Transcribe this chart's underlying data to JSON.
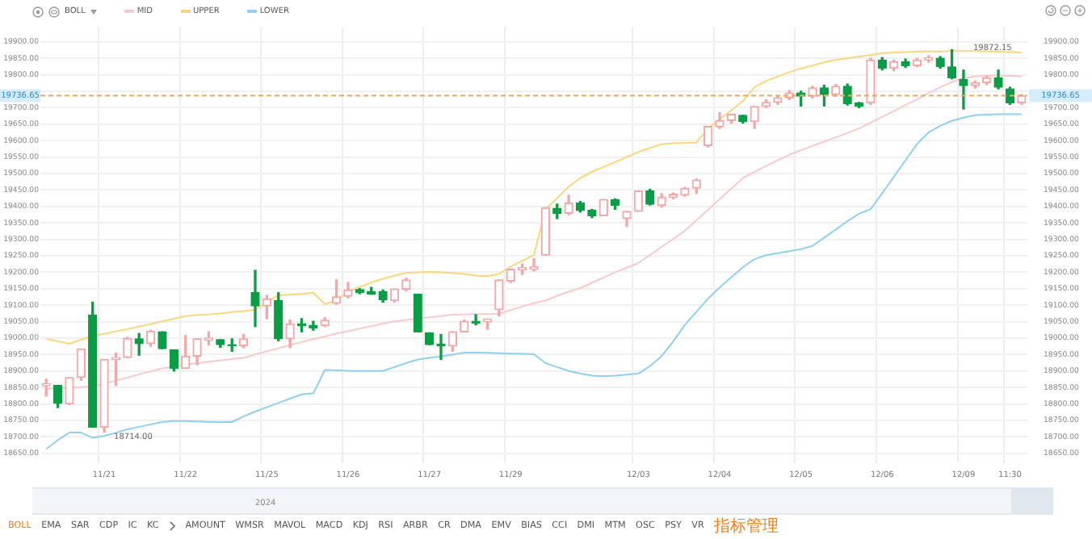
{
  "chart_data": {
    "type": "candlestick",
    "legend_title": "BOLL",
    "legend": "top left",
    "grid": true,
    "categories": [
      null,
      null,
      null,
      null,
      null,
      "11/21",
      null,
      null,
      null,
      null,
      null,
      null,
      "11/22",
      null,
      null,
      null,
      null,
      null,
      null,
      "11/25",
      null,
      null,
      null,
      null,
      null,
      null,
      "11/26",
      null,
      null,
      null,
      null,
      null,
      null,
      "11/27",
      null,
      null,
      null,
      null,
      null,
      null,
      "11/29",
      null,
      null,
      null,
      null,
      null,
      null,
      null,
      null,
      null,
      null,
      "12/03",
      null,
      null,
      null,
      null,
      null,
      null,
      "12/04",
      null,
      null,
      null,
      null,
      null,
      null,
      "12/05",
      null,
      null,
      null,
      null,
      null,
      null,
      "12/06",
      null,
      null,
      null,
      null,
      null,
      null,
      "12/09",
      null,
      null,
      null,
      "11:30",
      null
    ],
    "ylim": [
      18620,
      19945
    ],
    "yticks": [
      {
        "value": 18650,
        "label": "18650.00"
      },
      {
        "value": 18700,
        "label": "18700.00"
      },
      {
        "value": 18750,
        "label": "18750.00"
      },
      {
        "value": 18800,
        "label": "18800.00"
      },
      {
        "value": 18850,
        "label": "18850.00"
      },
      {
        "value": 18900,
        "label": "18900.00"
      },
      {
        "value": 18950,
        "label": "18950.00"
      },
      {
        "value": 19000,
        "label": "19000.00"
      },
      {
        "value": 19050,
        "label": "19050.00"
      },
      {
        "value": 19100,
        "label": "19100.00"
      },
      {
        "value": 19150,
        "label": "19150.00"
      },
      {
        "value": 19200,
        "label": "19200.00"
      },
      {
        "value": 19250,
        "label": "19250.00"
      },
      {
        "value": 19300,
        "label": "19300.00"
      },
      {
        "value": 19350,
        "label": "19350.00"
      },
      {
        "value": 19400,
        "label": "19400.00"
      },
      {
        "value": 19450,
        "label": "19450.00"
      },
      {
        "value": 19500,
        "label": "19500.00"
      },
      {
        "value": 19550,
        "label": "19550.00"
      },
      {
        "value": 19600,
        "label": "19600.00"
      },
      {
        "value": 19650,
        "label": "19650.00"
      },
      {
        "value": 19700,
        "label": "19700.00"
      },
      {
        "value": 19750,
        "label": null
      },
      {
        "value": 19800,
        "label": "19800.00"
      },
      {
        "value": 19850,
        "label": "19850.00"
      },
      {
        "value": 19900,
        "label": "19900.00"
      }
    ],
    "y2lim": [
      18620,
      19945
    ],
    "y2ticks": [
      {
        "value": 18650,
        "label": "18650.00"
      },
      {
        "value": 18700,
        "label": "18700.00"
      },
      {
        "value": 18750,
        "label": "18750.00"
      },
      {
        "value": 18800,
        "label": "18800.00"
      },
      {
        "value": 18850,
        "label": "18850.00"
      },
      {
        "value": 18900,
        "label": "18900.00"
      },
      {
        "value": 18950,
        "label": "18950.00"
      },
      {
        "value": 19000,
        "label": "19000.00"
      },
      {
        "value": 19050,
        "label": "19050.00"
      },
      {
        "value": 19100,
        "label": "19100.00"
      },
      {
        "value": 19150,
        "label": "19150.00"
      },
      {
        "value": 19200,
        "label": "19200.00"
      },
      {
        "value": 19250,
        "label": "19250.00"
      },
      {
        "value": 19300,
        "label": "19300.00"
      },
      {
        "value": 19350,
        "label": "19350.00"
      },
      {
        "value": 19400,
        "label": "19400.00"
      },
      {
        "value": 19450,
        "label": "19450.00"
      },
      {
        "value": 19500,
        "label": "19500.00"
      },
      {
        "value": 19550,
        "label": "19550.00"
      },
      {
        "value": 19600,
        "label": "19600.00"
      },
      {
        "value": 19650,
        "label": "19650.00"
      },
      {
        "value": 19700,
        "label": "19700.00"
      },
      {
        "value": 19750,
        "label": null
      },
      {
        "value": 19800,
        "label": "19800.00"
      },
      {
        "value": 19850,
        "label": "19850.00"
      },
      {
        "value": 19900,
        "label": "19900.00"
      }
    ],
    "ref_lines": [
      {
        "axis": "y",
        "value": 19736.65,
        "label": "19736.65",
        "color": "#f2a65a",
        "line_style": "dashed"
      }
    ],
    "series": [
      {
        "ohlc": [
          [
            18855,
            18875,
            18824,
            18862
          ],
          [
            18856,
            18856,
            18789,
            18802
          ],
          [
            18800,
            18880,
            18798,
            18880
          ],
          [
            18880,
            18967,
            18872,
            18967
          ],
          [
            19070,
            19109,
            18729,
            18729
          ],
          [
            18729,
            18935,
            18714,
            18935
          ],
          [
            18935,
            18954,
            18856,
            18941
          ],
          [
            18941,
            19002,
            18941,
            18999
          ],
          [
            18998,
            19014,
            18948,
            18983
          ],
          [
            18983,
            19024,
            18975,
            19021
          ],
          [
            19019,
            19019,
            18968,
            18968
          ],
          [
            18964,
            18964,
            18900,
            18908
          ],
          [
            18908,
            19008,
            18908,
            18945
          ],
          [
            18945,
            18998,
            18919,
            18998
          ],
          [
            18993,
            19019,
            18979,
            19000
          ],
          [
            18995,
            18995,
            18972,
            18980
          ],
          [
            18980,
            18998,
            18960,
            18977
          ],
          [
            18977,
            19011,
            18971,
            18998
          ],
          [
            19138,
            19206,
            19035,
            19098
          ],
          [
            19098,
            19130,
            19059,
            19119
          ],
          [
            19114,
            19138,
            18992,
            18998
          ],
          [
            18998,
            19055,
            18971,
            19043
          ],
          [
            19044,
            19059,
            19019,
            19037
          ],
          [
            19039,
            19051,
            19024,
            19031
          ],
          [
            19038,
            19062,
            19035,
            19054
          ],
          [
            19106,
            19177,
            19103,
            19125
          ],
          [
            19127,
            19169,
            19122,
            19146
          ],
          [
            19147,
            19150,
            19135,
            19138
          ],
          [
            19142,
            19154,
            19133,
            19134
          ],
          [
            19142,
            19146,
            19109,
            19117
          ],
          [
            19114,
            19149,
            19109,
            19149
          ],
          [
            19149,
            19182,
            19143,
            19177
          ],
          [
            19133,
            19133,
            19019,
            19019
          ],
          [
            19016,
            19016,
            18980,
            18980
          ],
          [
            18982,
            19011,
            18935,
            18976
          ],
          [
            18976,
            19019,
            18960,
            19019
          ],
          [
            19019,
            19055,
            19019,
            19051
          ],
          [
            19051,
            19071,
            19040,
            19046
          ],
          [
            19050,
            19058,
            19027,
            19058
          ],
          [
            19086,
            19177,
            19067,
            19177
          ],
          [
            19173,
            19209,
            19169,
            19209
          ],
          [
            19207,
            19225,
            19193,
            19214
          ],
          [
            19209,
            19241,
            19204,
            19217
          ],
          [
            19252,
            19396,
            19252,
            19396
          ],
          [
            19394,
            19407,
            19363,
            19379
          ],
          [
            19379,
            19434,
            19375,
            19410
          ],
          [
            19410,
            19415,
            19383,
            19388
          ],
          [
            19388,
            19391,
            19366,
            19372
          ],
          [
            19372,
            19421,
            19372,
            19421
          ],
          [
            19420,
            19423,
            19391,
            19403
          ],
          [
            19363,
            19385,
            19339,
            19385
          ],
          [
            19385,
            19447,
            19385,
            19447
          ],
          [
            19447,
            19452,
            19404,
            19407
          ],
          [
            19403,
            19439,
            19398,
            19428
          ],
          [
            19427,
            19441,
            19423,
            19437
          ],
          [
            19434,
            19458,
            19431,
            19455
          ],
          [
            19456,
            19483,
            19439,
            19480
          ],
          [
            19585,
            19643,
            19581,
            19643
          ],
          [
            19642,
            19685,
            19637,
            19661
          ],
          [
            19661,
            19680,
            19653,
            19680
          ],
          [
            19677,
            19677,
            19653,
            19658
          ],
          [
            19658,
            19704,
            19637,
            19704
          ],
          [
            19704,
            19724,
            19700,
            19716
          ],
          [
            19716,
            19735,
            19710,
            19730
          ],
          [
            19730,
            19752,
            19725,
            19745
          ],
          [
            19745,
            19750,
            19705,
            19735
          ],
          [
            19735,
            19765,
            19730,
            19760
          ],
          [
            19760,
            19768,
            19705,
            19740
          ],
          [
            19740,
            19770,
            19735,
            19765
          ],
          [
            19765,
            19772,
            19708,
            19712
          ],
          [
            19714,
            19716,
            19700,
            19704
          ],
          [
            19715,
            19850,
            19710,
            19845
          ],
          [
            19845,
            19852,
            19815,
            19820
          ],
          [
            19820,
            19845,
            19812,
            19840
          ],
          [
            19840,
            19848,
            19822,
            19828
          ],
          [
            19828,
            19850,
            19825,
            19845
          ],
          [
            19845,
            19858,
            19838,
            19852
          ],
          [
            19850,
            19855,
            19820,
            19825
          ],
          [
            19824,
            19876,
            19788,
            19791
          ],
          [
            19786,
            19814,
            19696,
            19767
          ],
          [
            19767,
            19781,
            19760,
            19776
          ],
          [
            19776,
            19795,
            19770,
            19791
          ],
          [
            19791,
            19814,
            19757,
            19762
          ],
          [
            19757,
            19762,
            19710,
            19715
          ],
          [
            19715,
            19740,
            19710,
            19736.65
          ]
        ],
        "colors": [
          "#f4a7a7",
          "#0b9c46",
          "#f4a7a7",
          "#f4a7a7",
          "#0b9c46",
          "#f4a7a7",
          "#f4a7a7",
          "#f4a7a7",
          "#0b9c46",
          "#f4a7a7",
          "#0b9c46",
          "#0b9c46",
          "#f4a7a7",
          "#f4a7a7",
          "#f4a7a7",
          "#0b9c46",
          "#0b9c46",
          "#f4a7a7",
          "#0b9c46",
          "#f4a7a7",
          "#0b9c46",
          "#f4a7a7",
          "#0b9c46",
          "#0b9c46",
          "#f4a7a7",
          "#f4a7a7",
          "#f4a7a7",
          "#0b9c46",
          "#0b9c46",
          "#0b9c46",
          "#f4a7a7",
          "#f4a7a7",
          "#0b9c46",
          "#0b9c46",
          "#0b9c46",
          "#f4a7a7",
          "#f4a7a7",
          "#0b9c46",
          "#f4a7a7",
          "#f4a7a7",
          "#f4a7a7",
          "#f4a7a7",
          "#f4a7a7",
          "#f4a7a7",
          "#0b9c46",
          "#f4a7a7",
          "#0b9c46",
          "#0b9c46",
          "#f4a7a7",
          "#0b9c46",
          "#f4a7a7",
          "#f4a7a7",
          "#0b9c46",
          "#f4a7a7",
          "#f4a7a7",
          "#f4a7a7",
          "#f4a7a7",
          "#f4a7a7",
          "#f4a7a7",
          "#f4a7a7",
          "#0b9c46",
          "#f4a7a7",
          "#f4a7a7",
          "#f4a7a7",
          "#f4a7a7",
          "#0b9c46",
          "#f4a7a7",
          "#0b9c46",
          "#f4a7a7",
          "#0b9c46",
          "#0b9c46",
          "#f4a7a7",
          "#0b9c46",
          "#f4a7a7",
          "#0b9c46",
          "#f4a7a7",
          "#f4a7a7",
          "#0b9c46",
          "#0b9c46",
          "#0b9c46",
          "#f4a7a7",
          "#f4a7a7",
          "#0b9c46",
          "#0b9c46",
          "#f4a7a7"
        ]
      },
      {
        "type": "line",
        "name": "MID",
        "color": "#f9c9cc",
        "values": [
          18845,
          18847,
          18849,
          18851,
          18853,
          18862,
          18871,
          18880,
          18890,
          18899,
          18908,
          18913,
          18919,
          18924,
          18928,
          18932,
          18936,
          18940,
          18950,
          18960,
          18969,
          18979,
          18988,
          18997,
          19005,
          19014,
          19021,
          19029,
          19036,
          19044,
          19051,
          19055,
          19059,
          19063,
          19067,
          19071,
          19072,
          19073,
          19073,
          19074,
          19085,
          19096,
          19106,
          19114,
          19128,
          19141,
          19152,
          19168,
          19184,
          19200,
          19214,
          19228,
          19252,
          19277,
          19301,
          19326,
          19358,
          19390,
          19422,
          19454,
          19486,
          19505,
          19523,
          19540,
          19557,
          19571,
          19584,
          19597,
          19610,
          19623,
          19637,
          19655,
          19672,
          19690,
          19708,
          19725,
          19745,
          19762,
          19778,
          19790,
          19795,
          19797,
          19798,
          19797,
          19795
        ]
      },
      {
        "type": "line",
        "name": "UPPER",
        "color": "#fad77e",
        "values": [
          18998,
          18990,
          18983,
          18995,
          19006,
          19013,
          19020,
          19027,
          19035,
          19043,
          19051,
          19059,
          19067,
          19070,
          19072,
          19075,
          19079,
          19082,
          19086,
          19110,
          19130,
          19132,
          19134,
          19138,
          19103,
          19115,
          19140,
          19155,
          19169,
          19180,
          19190,
          19198,
          19200,
          19201,
          19200,
          19198,
          19195,
          19190,
          19188,
          19195,
          19217,
          19235,
          19252,
          19391,
          19425,
          19460,
          19486,
          19505,
          19520,
          19535,
          19550,
          19565,
          19578,
          19589,
          19592,
          19593,
          19594,
          19637,
          19665,
          19692,
          19720,
          19762,
          19781,
          19795,
          19808,
          19819,
          19828,
          19838,
          19845,
          19850,
          19855,
          19860,
          19866,
          19868,
          19869,
          19870,
          19871,
          19871,
          19872,
          19872.15,
          19872,
          19871,
          19870,
          19869,
          19868
        ]
      },
      {
        "type": "line",
        "name": "LOWER",
        "color": "#8fd0f0",
        "values": [
          18663,
          18690,
          18713,
          18713,
          18697,
          18703,
          18712,
          18723,
          18730,
          18738,
          18745,
          18748,
          18748,
          18747,
          18745,
          18745,
          18745,
          18762,
          18777,
          18790,
          18803,
          18816,
          18829,
          18832,
          18903,
          18902,
          18901,
          18900,
          18900,
          18900,
          18912,
          18924,
          18935,
          18940,
          18945,
          18950,
          18956,
          18956,
          18955,
          18954,
          18953,
          18952,
          18951,
          18924,
          18912,
          18900,
          18892,
          18886,
          18884,
          18886,
          18889,
          18892,
          18915,
          18945,
          18990,
          19040,
          19080,
          19120,
          19154,
          19185,
          19215,
          19240,
          19252,
          19258,
          19264,
          19270,
          19280,
          19305,
          19330,
          19355,
          19378,
          19392,
          19440,
          19490,
          19540,
          19590,
          19625,
          19645,
          19660,
          19670,
          19677,
          19679,
          19680,
          19680,
          19680
        ]
      }
    ],
    "annotations": [
      {
        "text": "18714.00",
        "y": 18714
      },
      {
        "text": "19872.15",
        "y": 19872.15
      },
      "2024",
      "BOLL",
      "EMA",
      "SAR",
      "CDP",
      "IC",
      "KC",
      "AMOUNT",
      "WMSR",
      "MAVOL",
      "MACD",
      "KDJ",
      "RSI",
      "ARBR",
      "CR",
      "DMA",
      "EMV",
      "BIAS",
      "CCI",
      "DMI",
      "MTM",
      "OSC",
      "PSY",
      "VR",
      "指标管理"
    ]
  }
}
